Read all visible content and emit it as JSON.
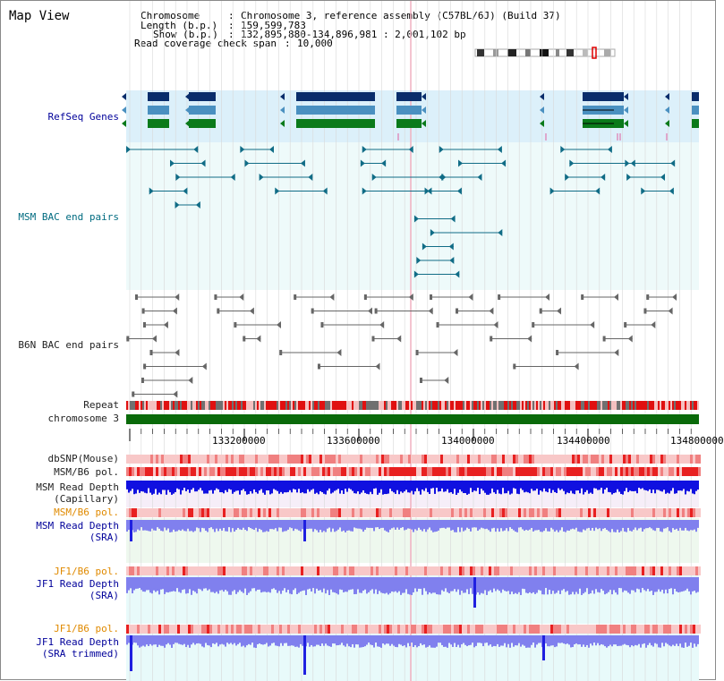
{
  "app_title": "Map View",
  "info": {
    "chromosome_key": "Chromosome",
    "chromosome_val": "Chromosome 3, reference assembly (C57BL/6J) (Build 37)",
    "length_key": "Length (b.p.)",
    "length_val": "159,599,783",
    "show_key": "Show (b.p.)",
    "show_val": "132,895,880-134,896,981 : 2,001,102 bp",
    "span_key": "Read coverage check span",
    "span_val": "10,000"
  },
  "tracks": {
    "refseq": "RefSeq Genes",
    "msm_bac": "MSM BAC end pairs",
    "b6n_bac": "B6N BAC end pairs",
    "repeat": "Repeat",
    "chromosome": "chromosome 3",
    "dbsnp": "dbSNP(Mouse)",
    "msm_b6_pol_1": "MSM/B6 pol.",
    "msm_depth_cap_1": "MSM Read Depth",
    "msm_depth_cap_2": "(Capillary)",
    "msm_b6_pol_2": "MSM/B6 pol.",
    "msm_depth_sra_1": "MSM Read Depth",
    "msm_depth_sra_2": "(SRA)",
    "jf1_pol_1": "JF1/B6 pol.",
    "jf1_depth_sra_1": "JF1 Read Depth",
    "jf1_depth_sra_2": "(SRA)",
    "jf1_pol_2": "JF1/B6 pol.",
    "jf1_depth_trim_1": "JF1 Read Depth",
    "jf1_depth_trim_2": "(SRA trimmed)"
  },
  "axis_ticks": [
    "133200000",
    "133600000",
    "134000000",
    "134400000",
    "134800000"
  ],
  "colors": {
    "gene_dark": "#0a2d6b",
    "gene_mid": "#4a90c0",
    "gene_green": "#0a7a1a",
    "msm_pair": "#106c86",
    "b6n_pair": "#666666",
    "chromosome": "#0a6a0a",
    "depth_blue": "#1010e0",
    "depth_light": "#8080ee"
  }
}
